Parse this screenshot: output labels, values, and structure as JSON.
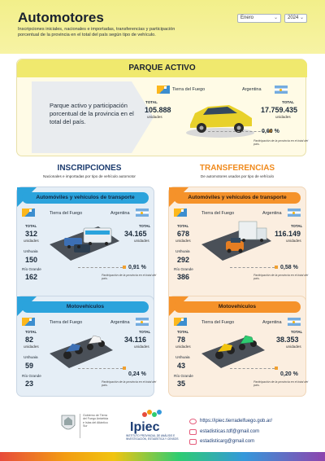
{
  "header": {
    "title": "Automotores",
    "subtitle": "Inscripciones iniciales, nacionales e importadas, transferencias y participación porcentual de la provincia en el total del país según tipo de vehículo.",
    "month_select": "Enero",
    "year_select": "2024"
  },
  "parque": {
    "title": "PARQUE ACTIVO",
    "description": "Parque activo y participación porcentual de la provincia en el total del país.",
    "tdf_label": "Tierra del Fuego",
    "ar_label": "Argentina",
    "total_label": "TOTAL",
    "tdf_total": "105.888",
    "ar_total": "17.759.435",
    "unit": "unidades",
    "pct": "0,60 %",
    "pct_note": "Participación de la provincia en el total del país."
  },
  "inscripciones": {
    "title": "INSCRIPCIONES",
    "subtitle": "Nacionales e importadas por tipo de vehículo automotor",
    "autos": {
      "title": "Automóviles y vehículos de transporte",
      "tdf_label": "Tierra del Fuego",
      "ar_label": "Argentina",
      "total_label": "TOTAL",
      "tdf_total": "312",
      "ar_total": "34.165",
      "unit": "unidades",
      "ushuaia_label": "Ushuaia",
      "ushuaia": "150",
      "rg_label": "Río Grande",
      "rg": "162",
      "pct": "0,91 %",
      "pct_note": "Participación de la provincia en el total del país."
    },
    "motos": {
      "title": "Motovehículos",
      "tdf_label": "Tierra del Fuego",
      "ar_label": "Argentina",
      "total_label": "TOTAL",
      "tdf_total": "82",
      "ar_total": "34.116",
      "unit": "unidades",
      "ushuaia_label": "Ushuaia",
      "ushuaia": "59",
      "rg_label": "Río Grande",
      "rg": "23",
      "pct": "0,24 %",
      "pct_note": "Participación de la provincia en el total del país."
    }
  },
  "transferencias": {
    "title": "TRANSFERENCIAS",
    "subtitle": "De automotores usados por tipo de vehículo",
    "autos": {
      "title": "Automóviles y vehículos de transporte",
      "tdf_label": "Tierra del Fuego",
      "ar_label": "Argentina",
      "total_label": "TOTAL",
      "tdf_total": "678",
      "ar_total": "116.149",
      "unit": "unidades",
      "ushuaia_label": "Ushuaia",
      "ushuaia": "292",
      "rg_label": "Río Grande",
      "rg": "386",
      "pct": "0,58 %",
      "pct_note": "Participación de la provincia en el total del país."
    },
    "motos": {
      "title": "Motovehículos",
      "tdf_label": "Tierra del Fuego",
      "ar_label": "Argentina",
      "total_label": "TOTAL",
      "tdf_total": "78",
      "ar_total": "38.353",
      "unit": "unidades",
      "ushuaia_label": "Ushuaia",
      "ushuaia": "43",
      "rg_label": "Río Grande",
      "rg": "35",
      "pct": "0,20 %",
      "pct_note": "Participación de la provincia en el total del país."
    }
  },
  "footer": {
    "gov_text": "Gobierno de Tierra del Fuego Antártida e Islas del Atlántico Sur",
    "ipiec_logo": "Ipiec",
    "ipiec_sub": "INSTITUTO PROVINCIAL DE ANÁLISIS E INVESTIGACIÓN, ESTADÍSTICA Y CENSOS",
    "web": "https://ipiec.tierradelfuego.gob.ar/",
    "email1": "estadisticas.tdf@gmail.com",
    "email2": "estadisticarg@gmail.com"
  },
  "colors": {
    "header_yellow": "#f2ef8a",
    "inscripciones_blue": "#2ba3dc",
    "transferencias_orange": "#f5922a"
  }
}
